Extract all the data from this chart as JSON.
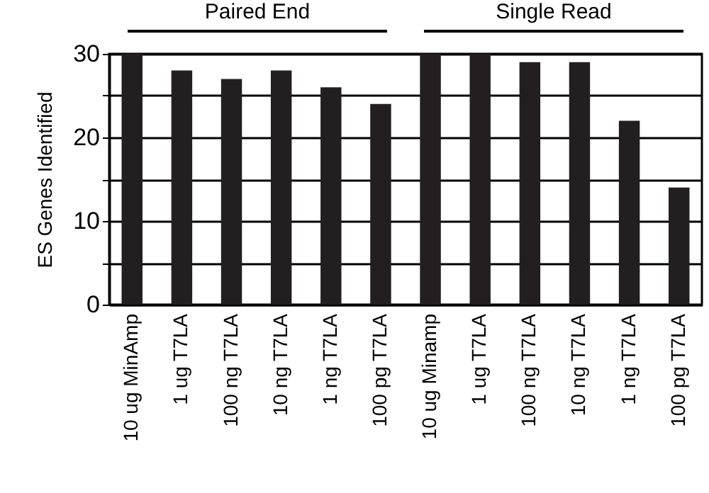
{
  "chart_data": {
    "type": "bar",
    "categories": [
      "10 ug MinAmp",
      "1 ug T7LA",
      "100 ng T7LA",
      "10 ng T7LA",
      "1 ng T7LA",
      "100 pg T7LA",
      "10 ug Minamp",
      "1 ug T7LA",
      "100 ng T7LA",
      "10 ng T7LA",
      "1 ng T7LA",
      "100 pg T7LA"
    ],
    "values": [
      30,
      28,
      27,
      28,
      26,
      24,
      30,
      30,
      29,
      29,
      22,
      14
    ],
    "color": "#231f20",
    "ylabel": "ES Genes Identified",
    "ylim": [
      0,
      30
    ],
    "yticks": [
      0,
      {
        "value": 5,
        "label": null
      },
      10,
      {
        "value": 15,
        "label": null
      },
      20,
      {
        "value": 25,
        "label": null
      },
      30
    ],
    "grid": "y",
    "annotations": [
      "Paired End",
      "Single Read"
    ]
  }
}
